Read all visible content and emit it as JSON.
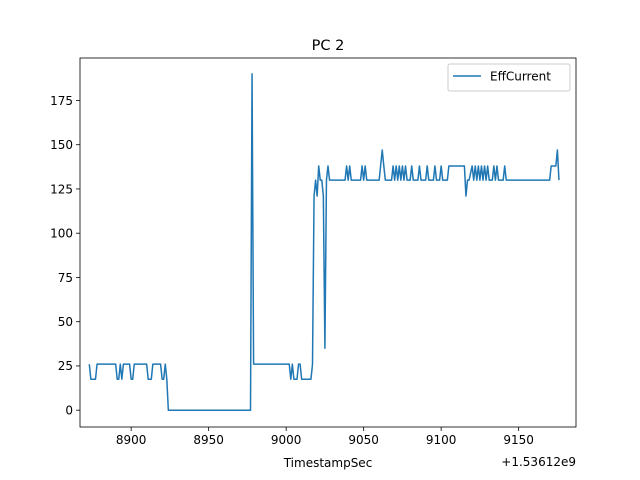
{
  "chart_data": {
    "type": "line",
    "title": "PC 2",
    "xlabel": "TimestampSec",
    "ylabel": "",
    "x_offset_label": "+1.53612e9",
    "xlim": [
      8867,
      9187
    ],
    "ylim": [
      -9.5,
      199
    ],
    "x_ticks": [
      8900,
      8950,
      9000,
      9050,
      9100,
      9150
    ],
    "y_ticks": [
      0,
      25,
      50,
      75,
      100,
      125,
      150,
      175
    ],
    "grid": false,
    "legend_position": "top-right",
    "line_color": "#1f77b4",
    "series": [
      {
        "name": "EffCurrent",
        "points": [
          [
            8873,
            26
          ],
          [
            8874,
            17.5
          ],
          [
            8876,
            17.5
          ],
          [
            8877,
            17.5
          ],
          [
            8878,
            26
          ],
          [
            8880,
            26
          ],
          [
            8884,
            26
          ],
          [
            8888,
            26
          ],
          [
            8890,
            26
          ],
          [
            8891,
            17.5
          ],
          [
            8892,
            17.5
          ],
          [
            8893,
            26
          ],
          [
            8894,
            17.5
          ],
          [
            8895,
            26
          ],
          [
            8897,
            26
          ],
          [
            8899,
            26
          ],
          [
            8900,
            17.5
          ],
          [
            8901,
            17.5
          ],
          [
            8902,
            26
          ],
          [
            8906,
            26
          ],
          [
            8908,
            26
          ],
          [
            8910,
            26
          ],
          [
            8911,
            17.5
          ],
          [
            8912,
            17.5
          ],
          [
            8913,
            17.5
          ],
          [
            8914,
            26
          ],
          [
            8916,
            26
          ],
          [
            8919,
            26
          ],
          [
            8920,
            17.5
          ],
          [
            8921,
            17.5
          ],
          [
            8922,
            26
          ],
          [
            8923,
            17.5
          ],
          [
            8924,
            0
          ],
          [
            8930,
            0
          ],
          [
            8940,
            0
          ],
          [
            8950,
            0
          ],
          [
            8960,
            0
          ],
          [
            8970,
            0
          ],
          [
            8977,
            0
          ],
          [
            8978,
            190
          ],
          [
            8979,
            26
          ],
          [
            8985,
            26
          ],
          [
            8990,
            26
          ],
          [
            8995,
            26
          ],
          [
            9000,
            26
          ],
          [
            9002,
            26
          ],
          [
            9003,
            17.5
          ],
          [
            9004,
            26
          ],
          [
            9005,
            17.5
          ],
          [
            9006,
            17.5
          ],
          [
            9007,
            17.5
          ],
          [
            9008,
            26
          ],
          [
            9009,
            26
          ],
          [
            9010,
            17.5
          ],
          [
            9013,
            17.5
          ],
          [
            9016,
            17.5
          ],
          [
            9017,
            26
          ],
          [
            9018,
            121
          ],
          [
            9019,
            130
          ],
          [
            9020,
            121
          ],
          [
            9021,
            138
          ],
          [
            9022,
            130
          ],
          [
            9023,
            130
          ],
          [
            9024,
            121
          ],
          [
            9025,
            35
          ],
          [
            9026,
            130
          ],
          [
            9027,
            138
          ],
          [
            9028,
            130
          ],
          [
            9030,
            130
          ],
          [
            9033,
            130
          ],
          [
            9036,
            130
          ],
          [
            9038,
            130
          ],
          [
            9039,
            138
          ],
          [
            9040,
            130
          ],
          [
            9041,
            138
          ],
          [
            9042,
            130
          ],
          [
            9045,
            130
          ],
          [
            9048,
            130
          ],
          [
            9049,
            138
          ],
          [
            9050,
            130
          ],
          [
            9051,
            138
          ],
          [
            9052,
            130
          ],
          [
            9057,
            130
          ],
          [
            9060,
            130
          ],
          [
            9062,
            147
          ],
          [
            9063,
            138
          ],
          [
            9064,
            130
          ],
          [
            9068,
            130
          ],
          [
            9069,
            138
          ],
          [
            9070,
            130
          ],
          [
            9071,
            138
          ],
          [
            9072,
            130
          ],
          [
            9073,
            138
          ],
          [
            9074,
            130
          ],
          [
            9075,
            138
          ],
          [
            9076,
            130
          ],
          [
            9077,
            138
          ],
          [
            9078,
            130
          ],
          [
            9080,
            130
          ],
          [
            9081,
            138
          ],
          [
            9082,
            130
          ],
          [
            9085,
            130
          ],
          [
            9086,
            138
          ],
          [
            9087,
            130
          ],
          [
            9090,
            130
          ],
          [
            9091,
            138
          ],
          [
            9092,
            130
          ],
          [
            9095,
            130
          ],
          [
            9096,
            138
          ],
          [
            9097,
            130
          ],
          [
            9099,
            130
          ],
          [
            9100,
            138
          ],
          [
            9101,
            130
          ],
          [
            9104,
            130
          ],
          [
            9105,
            138
          ],
          [
            9110,
            138
          ],
          [
            9115,
            138
          ],
          [
            9116,
            121
          ],
          [
            9117,
            130
          ],
          [
            9118,
            130
          ],
          [
            9120,
            138
          ],
          [
            9121,
            130
          ],
          [
            9122,
            138
          ],
          [
            9123,
            130
          ],
          [
            9124,
            138
          ],
          [
            9125,
            130
          ],
          [
            9126,
            138
          ],
          [
            9127,
            130
          ],
          [
            9128,
            138
          ],
          [
            9129,
            130
          ],
          [
            9130,
            138
          ],
          [
            9131,
            130
          ],
          [
            9133,
            130
          ],
          [
            9134,
            138
          ],
          [
            9135,
            130
          ],
          [
            9136,
            138
          ],
          [
            9137,
            130
          ],
          [
            9140,
            130
          ],
          [
            9141,
            138
          ],
          [
            9142,
            130
          ],
          [
            9145,
            130
          ],
          [
            9150,
            130
          ],
          [
            9155,
            130
          ],
          [
            9160,
            130
          ],
          [
            9165,
            130
          ],
          [
            9170,
            130
          ],
          [
            9171,
            138
          ],
          [
            9173,
            138
          ],
          [
            9174,
            138
          ],
          [
            9175,
            147
          ],
          [
            9176,
            130
          ]
        ]
      }
    ]
  }
}
